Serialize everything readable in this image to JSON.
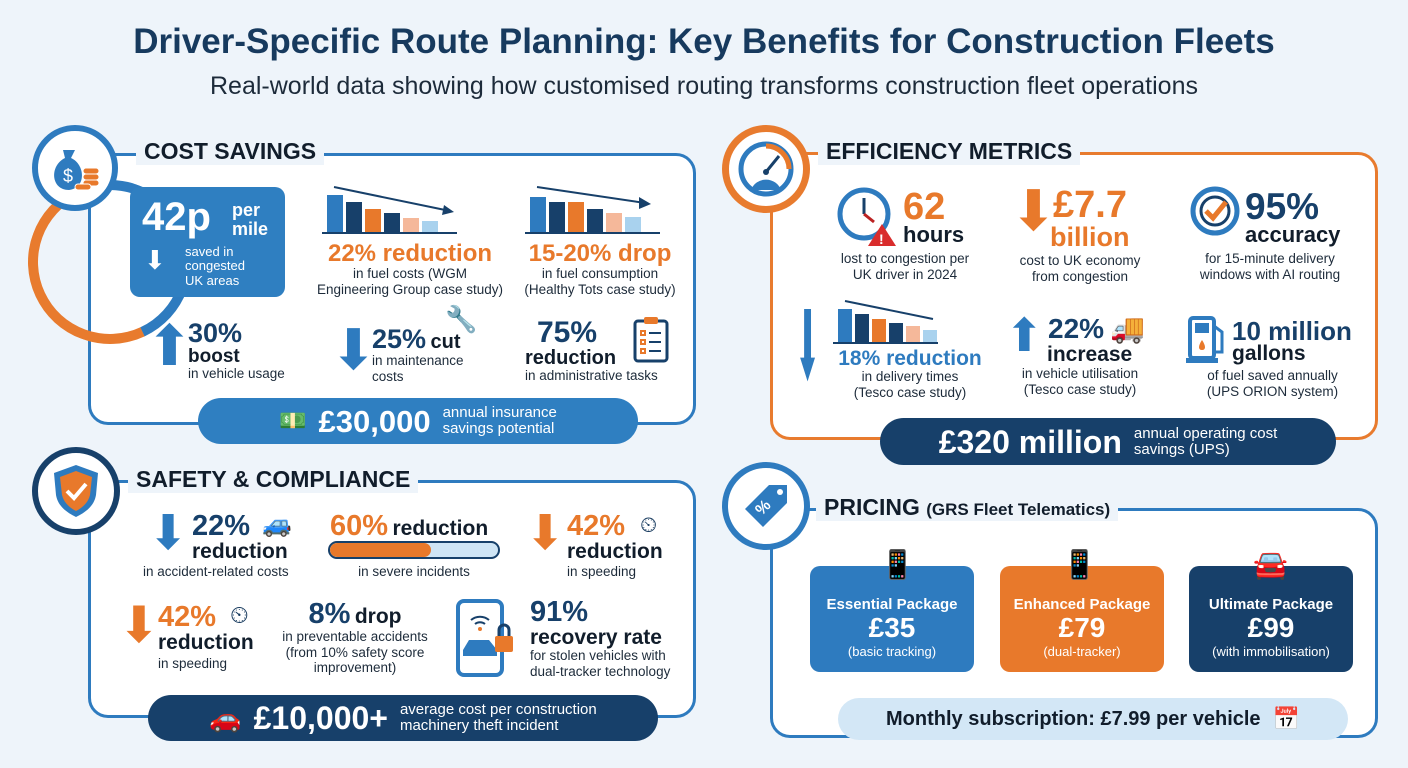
{
  "title": "Driver-Specific Route Planning: Key Benefits for Construction Fleets",
  "subtitle": "Real-world data showing how customised routing transforms construction fleet operations",
  "colors": {
    "blue": "#2e7bbf",
    "orange": "#e8792b",
    "navy": "#17406a",
    "background": "#eef4fa"
  },
  "cost": {
    "heading": "COST SAVINGS",
    "icon": "money-bag-icon",
    "hero": {
      "value": "42p",
      "unit_line1": "per",
      "unit_line2": "mile",
      "desc": "saved in congested UK areas"
    },
    "fuel": {
      "value": "22% reduction",
      "desc1": "in fuel costs (WGM",
      "desc2": "Engineering Group case study)"
    },
    "consumption": {
      "value": "15-20% drop",
      "desc1": "in fuel consumption",
      "desc2": "(Healthy Tots case study)"
    },
    "usage": {
      "value": "30%",
      "label": "boost",
      "desc": "in vehicle usage"
    },
    "maintenance": {
      "value": "25%",
      "label": "cut",
      "desc1": "in maintenance",
      "desc2": "costs"
    },
    "admin": {
      "value": "75%",
      "label": "reduction",
      "desc": "in administrative tasks"
    },
    "banner": {
      "value": "£30,000",
      "desc1": "annual insurance",
      "desc2": "savings potential"
    }
  },
  "efficiency": {
    "heading": "EFFICIENCY METRICS",
    "icon": "speedometer-icon",
    "hours": {
      "value": "62",
      "label": "hours",
      "desc1": "lost to congestion per",
      "desc2": "UK driver in 2024"
    },
    "economy": {
      "value": "£7.7",
      "label": "billion",
      "desc1": "cost to UK economy",
      "desc2": "from congestion"
    },
    "accuracy": {
      "value": "95%",
      "label": "accuracy",
      "desc1": "for 15-minute delivery",
      "desc2": "windows with AI routing"
    },
    "delivery": {
      "value": "18% reduction",
      "desc1": "in delivery times",
      "desc2": "(Tesco case study)"
    },
    "utilisation": {
      "value": "22%",
      "label": "increase",
      "desc1": "in vehicle utilisation",
      "desc2": "(Tesco case study)"
    },
    "fuel": {
      "value": "10 million",
      "label": "gallons",
      "desc1": "of fuel saved annually",
      "desc2": "(UPS ORION system)"
    },
    "banner": {
      "value": "£320 million",
      "desc1": "annual operating cost",
      "desc2": "savings (UPS)"
    }
  },
  "safety": {
    "heading": "SAFETY & COMPLIANCE",
    "icon": "shield-check-icon",
    "accident": {
      "value": "22%",
      "label": "reduction",
      "desc": "in accident-related costs"
    },
    "severe": {
      "value": "60%",
      "label": "reduction",
      "desc": "in severe incidents",
      "progress_percent": 60
    },
    "speeding1": {
      "value": "42%",
      "label": "reduction",
      "desc": "in speeding"
    },
    "speeding2": {
      "value": "42%",
      "label": "reduction",
      "desc": "in speeding"
    },
    "preventable": {
      "value": "8%",
      "label": "drop",
      "desc1": "in preventable accidents",
      "desc2": "(from 10% safety score",
      "desc3": "improvement)"
    },
    "recovery": {
      "value": "91%",
      "label": "recovery rate",
      "desc1": "for stolen vehicles with",
      "desc2": "dual-tracker technology"
    },
    "banner": {
      "value": "£10,000+",
      "desc1": "average cost per construction",
      "desc2": "machinery theft incident"
    }
  },
  "pricing": {
    "heading": "PRICING",
    "heading_note": "(GRS Fleet Telematics)",
    "icon": "price-tag-icon",
    "packages": [
      {
        "name": "Essential Package",
        "price": "£35",
        "desc": "(basic tracking)",
        "color": "#2e7bbf"
      },
      {
        "name": "Enhanced Package",
        "price": "£79",
        "desc": "(dual-tracker)",
        "color": "#e8792b"
      },
      {
        "name": "Ultimate Package",
        "price": "£99",
        "desc": "(with immobilisation)",
        "color": "#17406a"
      }
    ],
    "subscription": "Monthly subscription: £7.99 per vehicle"
  }
}
